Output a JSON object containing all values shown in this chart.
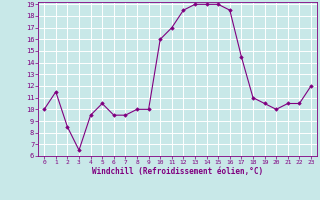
{
  "x": [
    0,
    1,
    2,
    3,
    4,
    5,
    6,
    7,
    8,
    9,
    10,
    11,
    12,
    13,
    14,
    15,
    16,
    17,
    18,
    19,
    20,
    21,
    22,
    23
  ],
  "y": [
    10.0,
    11.5,
    8.5,
    6.5,
    9.5,
    10.5,
    9.5,
    9.5,
    10.0,
    10.0,
    16.0,
    17.0,
    18.5,
    19.0,
    19.0,
    19.0,
    18.5,
    14.5,
    11.0,
    10.5,
    10.0,
    10.5,
    10.5,
    12.0
  ],
  "xlabel": "Windchill (Refroidissement éolien,°C)",
  "ylim": [
    6,
    19
  ],
  "yticks": [
    6,
    7,
    8,
    9,
    10,
    11,
    12,
    13,
    14,
    15,
    16,
    17,
    18,
    19
  ],
  "xticks": [
    0,
    1,
    2,
    3,
    4,
    5,
    6,
    7,
    8,
    9,
    10,
    11,
    12,
    13,
    14,
    15,
    16,
    17,
    18,
    19,
    20,
    21,
    22,
    23
  ],
  "line_color": "#800080",
  "marker_color": "#800080",
  "bg_color": "#c8e8e8",
  "grid_color": "#ffffff",
  "axes_bg": "#c8e8e8",
  "tick_color": "#800080",
  "label_color": "#800080"
}
